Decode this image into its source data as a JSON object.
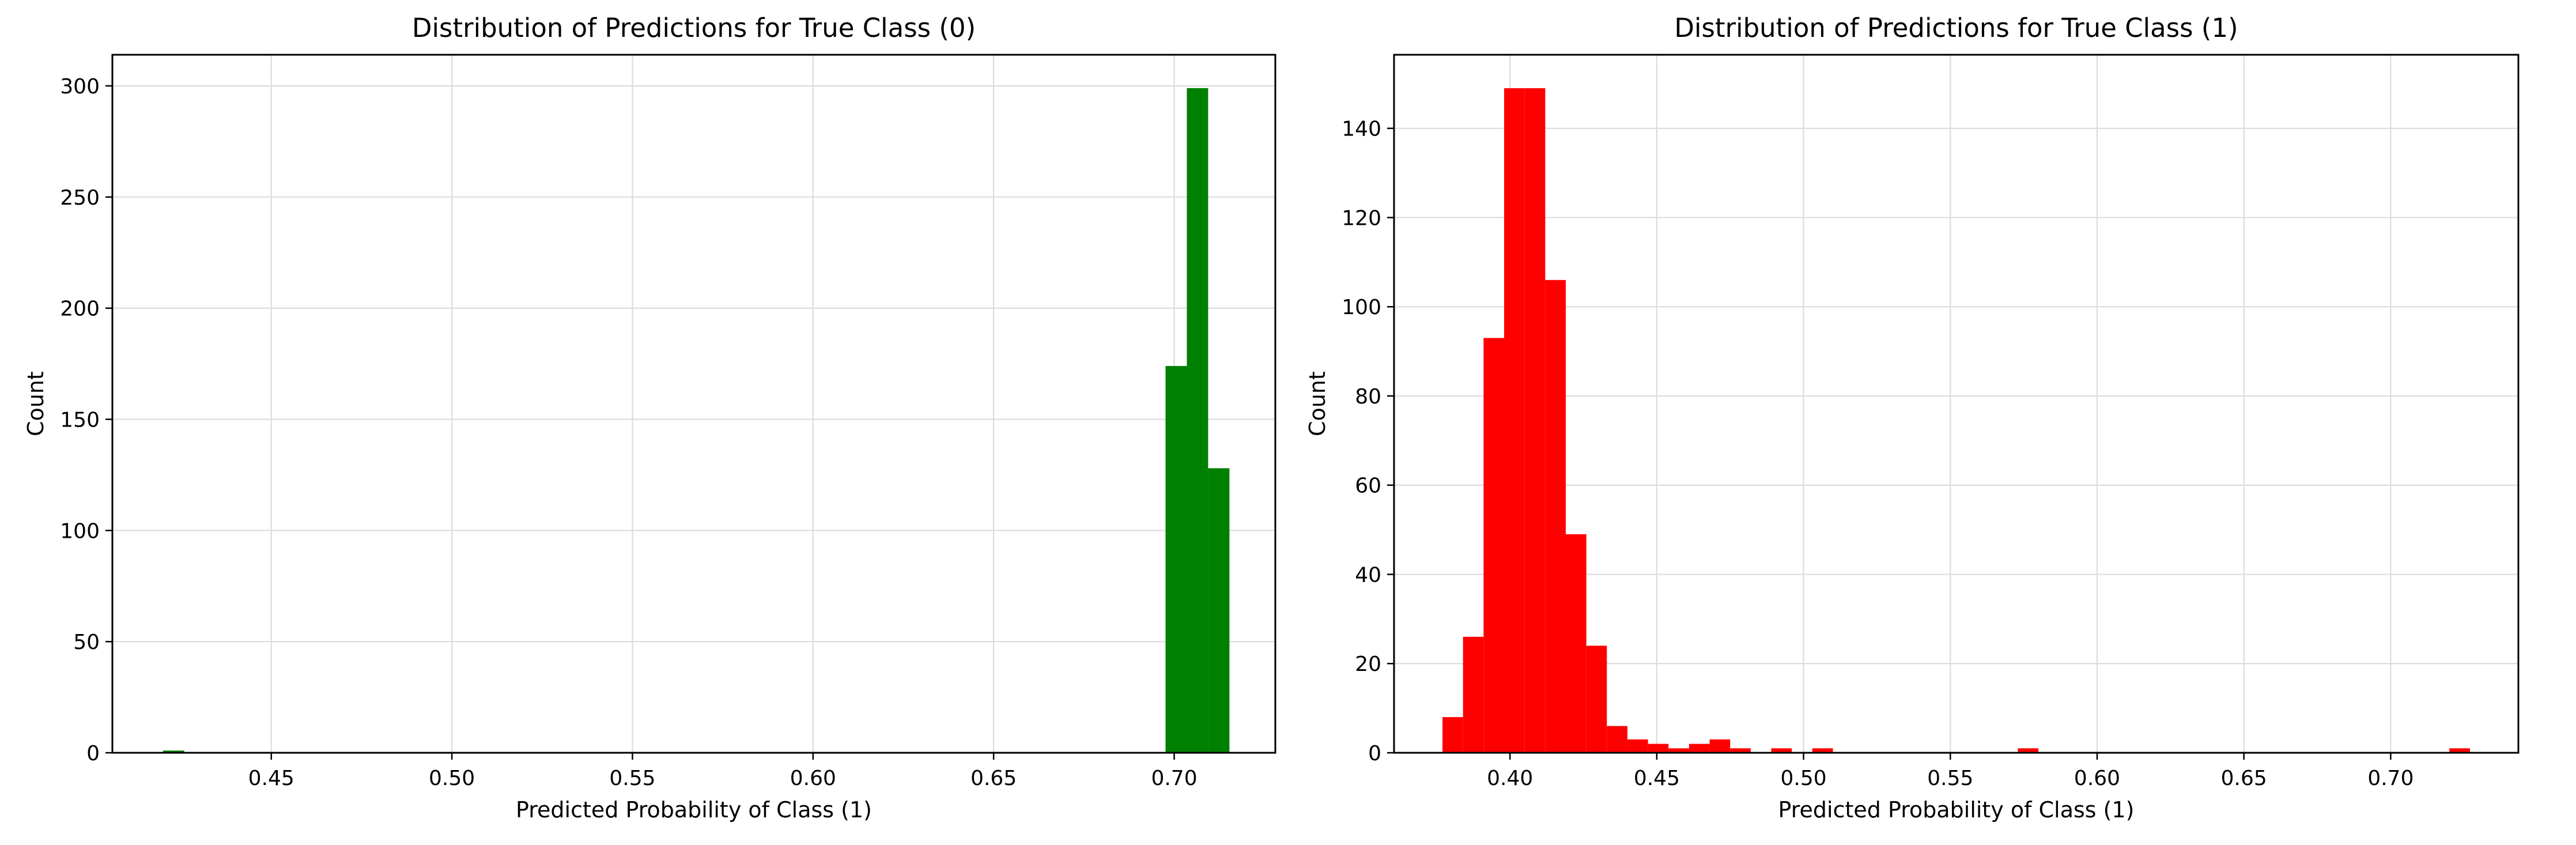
{
  "chart_data": [
    {
      "type": "bar",
      "title": "Distribution of Predictions for True Class (0)",
      "xlabel": "Predicted Probability of Class (1)",
      "ylabel": "Count",
      "xlim": [
        0.406,
        0.728
      ],
      "ylim": [
        0,
        314
      ],
      "xticks": [
        0.45,
        0.5,
        0.55,
        0.6,
        0.65,
        0.7
      ],
      "xtick_labels": [
        "0.45",
        "0.50",
        "0.55",
        "0.60",
        "0.65",
        "0.70"
      ],
      "yticks": [
        0,
        50,
        100,
        150,
        200,
        250,
        300
      ],
      "ytick_labels": [
        "0",
        "50",
        "100",
        "150",
        "200",
        "250",
        "300"
      ],
      "grid": true,
      "color": "#008000",
      "bins": [
        {
          "x0": 0.42,
          "x1": 0.4259,
          "count": 1
        },
        {
          "x0": 0.6976,
          "x1": 0.7035,
          "count": 174
        },
        {
          "x0": 0.7035,
          "x1": 0.7094,
          "count": 299
        },
        {
          "x0": 0.7094,
          "x1": 0.7153,
          "count": 128
        }
      ]
    },
    {
      "type": "bar",
      "title": "Distribution of Predictions for True Class (1)",
      "xlabel": "Predicted Probability of Class (1)",
      "ylabel": "Count",
      "xlim": [
        0.3605,
        0.7435
      ],
      "ylim": [
        0,
        156.5
      ],
      "xticks": [
        0.4,
        0.45,
        0.5,
        0.55,
        0.6,
        0.65,
        0.7
      ],
      "xtick_labels": [
        "0.40",
        "0.45",
        "0.50",
        "0.55",
        "0.60",
        "0.65",
        "0.70"
      ],
      "yticks": [
        0,
        20,
        40,
        60,
        80,
        100,
        120,
        140
      ],
      "ytick_labels": [
        "0",
        "20",
        "40",
        "60",
        "80",
        "100",
        "120",
        "140"
      ],
      "grid": true,
      "color": "#ff0000",
      "bins": [
        {
          "x0": 0.377,
          "x1": 0.384,
          "count": 8
        },
        {
          "x0": 0.384,
          "x1": 0.391,
          "count": 26
        },
        {
          "x0": 0.391,
          "x1": 0.398,
          "count": 93
        },
        {
          "x0": 0.398,
          "x1": 0.405,
          "count": 149
        },
        {
          "x0": 0.405,
          "x1": 0.412,
          "count": 149
        },
        {
          "x0": 0.412,
          "x1": 0.419,
          "count": 106
        },
        {
          "x0": 0.419,
          "x1": 0.426,
          "count": 49
        },
        {
          "x0": 0.426,
          "x1": 0.433,
          "count": 24
        },
        {
          "x0": 0.433,
          "x1": 0.44,
          "count": 6
        },
        {
          "x0": 0.44,
          "x1": 0.447,
          "count": 3
        },
        {
          "x0": 0.447,
          "x1": 0.454,
          "count": 2
        },
        {
          "x0": 0.454,
          "x1": 0.461,
          "count": 1
        },
        {
          "x0": 0.461,
          "x1": 0.468,
          "count": 2
        },
        {
          "x0": 0.468,
          "x1": 0.475,
          "count": 3
        },
        {
          "x0": 0.475,
          "x1": 0.482,
          "count": 1
        },
        {
          "x0": 0.489,
          "x1": 0.496,
          "count": 1
        },
        {
          "x0": 0.503,
          "x1": 0.51,
          "count": 1
        },
        {
          "x0": 0.573,
          "x1": 0.58,
          "count": 1
        },
        {
          "x0": 0.72,
          "x1": 0.727,
          "count": 1
        }
      ]
    }
  ]
}
